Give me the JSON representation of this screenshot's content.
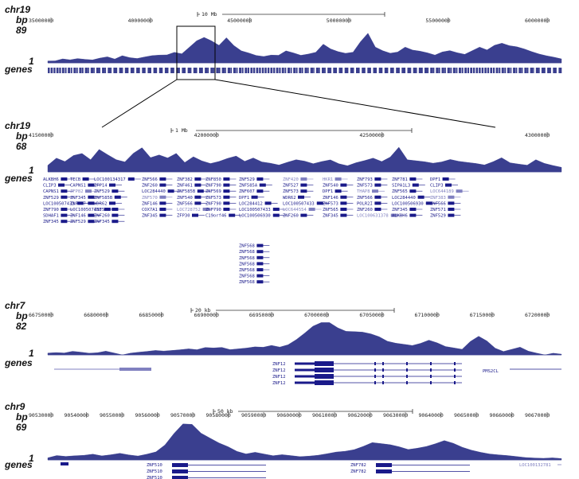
{
  "colors": {
    "track": "#3a3f8f",
    "gene": "#1a1a8a",
    "gene_faint": "#8080c0",
    "text": "#222222"
  },
  "panels": [
    {
      "id": "p1",
      "labels": {
        "chrom": "chr19",
        "unit": "bp",
        "max": "89",
        "min": "1",
        "genes": "genes"
      },
      "scale": {
        "label": "10 Mb"
      },
      "ticks": [
        "35000000",
        "40000000",
        "45000000",
        "50000000",
        "55000000",
        "60000000"
      ],
      "signal": [
        0.05,
        0.05,
        0.1,
        0.08,
        0.12,
        0.1,
        0.08,
        0.12,
        0.15,
        0.1,
        0.2,
        0.15,
        0.12,
        0.15,
        0.18,
        0.2,
        0.22,
        0.3,
        0.25,
        0.4,
        0.55,
        0.65,
        0.6,
        0.5,
        0.7,
        0.45,
        0.3,
        0.25,
        0.2,
        0.18,
        0.22,
        0.2,
        0.3,
        0.25,
        0.2,
        0.25,
        0.3,
        0.5,
        0.35,
        0.28,
        0.25,
        0.3,
        0.6,
        0.8,
        0.4,
        0.3,
        0.25,
        0.3,
        0.45,
        0.35,
        0.3,
        0.25,
        0.2,
        0.3,
        0.35,
        0.28,
        0.22,
        0.3,
        0.4,
        0.35,
        0.5,
        0.55,
        0.45,
        0.4,
        0.35,
        0.3,
        0.25,
        0.2,
        0.15,
        0.1
      ],
      "genes": [],
      "zoom": true
    },
    {
      "id": "p2",
      "labels": {
        "chrom": "chr19",
        "unit": "bp",
        "max": "68",
        "min": "1",
        "genes": "genes"
      },
      "scale": {
        "label": "1 Mb"
      },
      "ticks": [
        "41500000",
        "42000000",
        "42500000",
        "43000000"
      ],
      "signal": [
        0.2,
        0.4,
        0.3,
        0.5,
        0.6,
        0.4,
        0.7,
        0.5,
        0.35,
        0.3,
        0.6,
        0.8,
        0.45,
        0.5,
        0.4,
        0.55,
        0.3,
        0.5,
        0.35,
        0.25,
        0.3,
        0.4,
        0.5,
        0.35,
        0.45,
        0.3,
        0.25,
        0.2,
        0.3,
        0.4,
        0.35,
        0.25,
        0.3,
        0.35,
        0.25,
        0.2,
        0.3,
        0.35,
        0.4,
        0.3,
        0.45,
        0.8,
        0.4,
        0.35,
        0.3,
        0.25,
        0.3,
        0.4,
        0.35,
        0.3,
        0.25,
        0.2,
        0.3,
        0.45,
        0.3,
        0.25,
        0.2,
        0.35,
        0.25,
        0.2,
        0.15
      ],
      "genes": [
        {
          "t": "ALKBH6",
          "c": 0
        },
        {
          "t": "TECB",
          "c": 0
        },
        {
          "t": "LOC100134317",
          "c": 0
        },
        {
          "t": "ZNF566",
          "c": 0
        },
        {
          "t": "ZNF382",
          "c": 0
        },
        {
          "t": "ZNF850",
          "c": 0
        },
        {
          "t": "ZNF529",
          "c": 0
        },
        {
          "t": "ZNF420",
          "c": 1
        },
        {
          "t": "HKR1",
          "c": 1
        },
        {
          "t": "ZNF793",
          "c": 0
        },
        {
          "t": "ZNF781",
          "c": 0
        },
        {
          "t": "DPF1",
          "c": 0
        },
        {
          "t": "CLIP3",
          "c": 0
        },
        {
          "t": "CAPNS1",
          "c": 0
        },
        {
          "t": "ZFP14",
          "c": 0
        },
        {
          "t": "ZNF260",
          "c": 0
        },
        {
          "t": "ZNF461",
          "c": 0
        },
        {
          "t": "ZNF790",
          "c": 0
        },
        {
          "t": "ZNF585A",
          "c": 0
        },
        {
          "t": "ZNF527",
          "c": 0
        },
        {
          "t": "ZNF540",
          "c": 0
        },
        {
          "t": "ZNF573",
          "c": 0
        },
        {
          "t": "SIPA1L3",
          "c": 0
        },
        {
          "t": "CLIP3",
          "c": 0
        },
        {
          "t": "CAPNS1",
          "c": 0
        },
        {
          "t": "ZFP82",
          "c": 1
        },
        {
          "t": "ZNF529",
          "c": 0
        },
        {
          "t": "LOC284440",
          "c": 0
        },
        {
          "t": "ZNF585B",
          "c": 0
        },
        {
          "t": "ZNF569",
          "c": 0
        },
        {
          "t": "ZNF607",
          "c": 0
        },
        {
          "t": "ZNF573",
          "c": 0
        },
        {
          "t": "DPF1",
          "c": 0
        },
        {
          "t": "THAP8",
          "c": 1
        },
        {
          "t": "ZNF565",
          "c": 0
        },
        {
          "t": "LOC644189",
          "c": 1
        },
        {
          "t": "ZNF529",
          "c": 0
        },
        {
          "t": "ZNF345",
          "c": 0
        },
        {
          "t": "ZNF585B",
          "c": 0
        },
        {
          "t": "ZNF570",
          "c": 1
        },
        {
          "t": "ZNF540",
          "c": 0
        },
        {
          "t": "ZNF573",
          "c": 0
        },
        {
          "t": "DPF1",
          "c": 0
        },
        {
          "t": "WDR62",
          "c": 0
        },
        {
          "t": "ZNF146",
          "c": 0
        },
        {
          "t": "ZNF566",
          "c": 0
        },
        {
          "t": "LOC284440",
          "c": 0
        },
        {
          "t": "ZNF383",
          "c": 1
        },
        {
          "t": "LOC100507433",
          "c": 0
        },
        {
          "t": "ZNF607",
          "c": 0
        },
        {
          "t": "WDR62",
          "c": 0
        },
        {
          "t": "ZNF146",
          "c": 0
        },
        {
          "t": "ZNF566",
          "c": 0
        },
        {
          "t": "ZNF790",
          "c": 0
        },
        {
          "t": "LOC284412",
          "c": 0
        },
        {
          "t": "LOC100507433",
          "c": 0
        },
        {
          "t": "ZNF573",
          "c": 0
        },
        {
          "t": "POLR2I",
          "c": 0
        },
        {
          "t": "LOC100506930",
          "c": 0
        },
        {
          "t": "ZNF566",
          "c": 0
        },
        {
          "t": "ZNF790",
          "c": 0
        },
        {
          "t": "LOC100507433",
          "c": 0
        },
        {
          "t": "ZNF573",
          "c": 0
        },
        {
          "t": "COX7A1",
          "c": 0
        },
        {
          "t": "LOC728752",
          "c": 1
        },
        {
          "t": "ZNF790",
          "c": 0
        },
        {
          "t": "LOC100507433",
          "c": 0
        },
        {
          "t": "LOC644554",
          "c": 1
        },
        {
          "t": "ZNF565",
          "c": 0
        },
        {
          "t": "ZNF260",
          "c": 0
        },
        {
          "t": "ZNF345",
          "c": 0
        },
        {
          "t": "ZNF571",
          "c": 0
        },
        {
          "t": "SDHAF1",
          "c": 0
        },
        {
          "t": "ZNF146",
          "c": 0
        },
        {
          "t": "ZNF260",
          "c": 0
        },
        {
          "t": "ZNF345",
          "c": 0
        },
        {
          "t": "ZFP30",
          "c": 0
        },
        {
          "t": "C19orf46",
          "c": 0
        },
        {
          "t": "LOC100506930",
          "c": 0
        },
        {
          "t": "ZNF260",
          "c": 0
        },
        {
          "t": "ZNF345",
          "c": 0
        },
        {
          "t": "LOC100631378",
          "c": 1
        },
        {
          "t": "ALKBH6",
          "c": 0
        },
        {
          "t": "ZNF529",
          "c": 0
        },
        {
          "t": "ZNF345",
          "c": 0
        },
        {
          "t": "ZNF529",
          "c": 0
        },
        {
          "t": "ZNF345",
          "c": 0
        },
        {
          "t": "ZNF568",
          "c": 0
        },
        {
          "t": "ZNF568",
          "c": 0
        },
        {
          "t": "ZNF568",
          "c": 0
        },
        {
          "t": "ZNF568",
          "c": 0
        },
        {
          "t": "ZNF568",
          "c": 0
        },
        {
          "t": "ZNF568",
          "c": 0
        },
        {
          "t": "ZNF568",
          "c": 0
        }
      ],
      "zoom": false
    },
    {
      "id": "p3",
      "labels": {
        "chrom": "chr7",
        "unit": "bp",
        "max": "82",
        "min": "1",
        "genes": "genes"
      },
      "scale": {
        "label": "20 kb"
      },
      "ticks": [
        "66750000",
        "66800000",
        "66850000",
        "66900000",
        "66950000",
        "67000000",
        "67050000",
        "67100000",
        "67150000",
        "67200000"
      ],
      "signal": [
        0.05,
        0.06,
        0.05,
        0.1,
        0.08,
        0.05,
        0.06,
        0.1,
        0.05,
        0.0,
        0.05,
        0.08,
        0.1,
        0.12,
        0.1,
        0.12,
        0.15,
        0.18,
        0.15,
        0.2,
        0.18,
        0.2,
        0.15,
        0.18,
        0.2,
        0.22,
        0.2,
        0.25,
        0.22,
        0.3,
        0.45,
        0.6,
        0.75,
        0.85,
        0.9,
        0.8,
        0.7,
        0.65,
        0.6,
        0.55,
        0.5,
        0.4,
        0.35,
        0.3,
        0.25,
        0.3,
        0.4,
        0.35,
        0.25,
        0.2,
        0.15,
        0.35,
        0.5,
        0.4,
        0.2,
        0.1,
        0.15,
        0.2,
        0.1,
        0.05,
        0.0,
        0.05,
        0.02
      ],
      "genes": [
        {
          "t": "ZNF12",
          "c": 0
        },
        {
          "t": "ZNF12",
          "c": 0
        },
        {
          "t": "ZNF12",
          "c": 0
        },
        {
          "t": "ZNF12",
          "c": 0
        },
        {
          "t": "PMS2CL",
          "c": 0
        }
      ],
      "zoom": false
    },
    {
      "id": "p4",
      "labels": {
        "chrom": "chr9",
        "unit": "bp",
        "max": "69",
        "min": "1",
        "genes": "genes"
      },
      "scale": {
        "label": "50 kb"
      },
      "ticks": [
        "90530000",
        "90540000",
        "90550000",
        "90560000",
        "90570000",
        "90580000",
        "90590000",
        "90600000",
        "90610000",
        "90620000",
        "90630000",
        "90640000",
        "90650000",
        "90660000",
        "90670000"
      ],
      "signal": [
        0.05,
        0.1,
        0.08,
        0.1,
        0.12,
        0.15,
        0.1,
        0.12,
        0.15,
        0.12,
        0.1,
        0.15,
        0.2,
        0.35,
        0.6,
        0.85,
        0.9,
        0.7,
        0.55,
        0.4,
        0.3,
        0.2,
        0.15,
        0.2,
        0.15,
        0.1,
        0.12,
        0.1,
        0.08,
        0.1,
        0.12,
        0.15,
        0.18,
        0.2,
        0.25,
        0.35,
        0.45,
        0.4,
        0.35,
        0.3,
        0.25,
        0.3,
        0.35,
        0.4,
        0.45,
        0.38,
        0.3,
        0.25,
        0.2,
        0.15,
        0.12,
        0.1,
        0.08,
        0.06,
        0.05,
        0.04,
        0.05,
        0.03
      ],
      "genes": [
        {
          "t": "ZNF510",
          "c": 0
        },
        {
          "t": "ZNF510",
          "c": 0
        },
        {
          "t": "ZNF510",
          "c": 0
        },
        {
          "t": "ZNF782",
          "c": 0
        },
        {
          "t": "ZNF782",
          "c": 0
        },
        {
          "t": "LOC100132781",
          "c": 1
        }
      ],
      "zoom": false
    }
  ]
}
